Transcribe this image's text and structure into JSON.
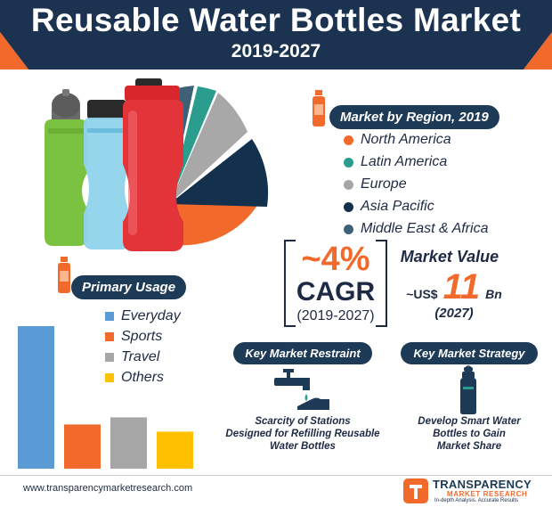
{
  "header": {
    "title": "Reusable Water Bottles Market",
    "years": "2019-2027"
  },
  "region": {
    "heading": "Market by Region, 2019",
    "items": [
      {
        "label": "North America",
        "color": "#f26a2b"
      },
      {
        "label": "Latin America",
        "color": "#2a9d8f"
      },
      {
        "label": "Europe",
        "color": "#a6a6a6"
      },
      {
        "label": "Asia Pacific",
        "color": "#13304c"
      },
      {
        "label": "Middle East & Africa",
        "color": "#3f6178"
      }
    ]
  },
  "cagr": {
    "value": "~4%",
    "label": "CAGR",
    "period": "(2019-2027)"
  },
  "market_value": {
    "heading": "Market Value",
    "prefix": "~US$",
    "number": "11",
    "unit": "Bn",
    "year": "(2027)"
  },
  "usage": {
    "heading": "Primary Usage",
    "items": [
      {
        "label": "Everyday",
        "color": "#5b9bd5"
      },
      {
        "label": "Sports",
        "color": "#f26a2b"
      },
      {
        "label": "Travel",
        "color": "#a6a6a6"
      },
      {
        "label": "Others",
        "color": "#ffc000"
      }
    ]
  },
  "chart_data": {
    "type": "bar",
    "categories": [
      "Everyday",
      "Sports",
      "Travel",
      "Others"
    ],
    "values": [
      100,
      31,
      36,
      26
    ],
    "ylim": [
      0,
      100
    ]
  },
  "restraint": {
    "heading": "Key Market Restraint",
    "text_lines": [
      "Scarcity of Stations",
      "Designed for Refilling Reusable",
      "Water Bottles"
    ]
  },
  "strategy": {
    "heading": "Key Market Strategy",
    "text_lines": [
      "Develop Smart Water",
      "Bottles to Gain",
      "Market Share"
    ]
  },
  "footer": {
    "url": "www.transparencymarketresearch.com",
    "brand_line1": "TRANSPARENCY",
    "brand_line2": "MARKET RESEARCH",
    "tagline": "In-depth Analysis. Accurate Results"
  },
  "colors": {
    "navy": "#1d3a56",
    "orange": "#f26a2b",
    "teal": "#2a9d8f"
  }
}
